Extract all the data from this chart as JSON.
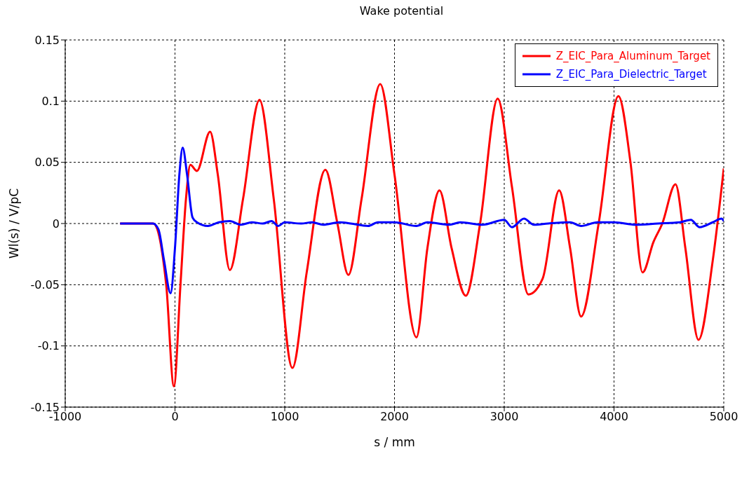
{
  "chart_data": {
    "type": "line",
    "title": "Wake potential",
    "xlabel": "s / mm",
    "ylabel": "Wl(s) / V/pC",
    "xlim": [
      -1000,
      5000
    ],
    "xticks": [
      -1000,
      0,
      1000,
      2000,
      3000,
      4000,
      5000
    ],
    "ylim": [
      -0.15,
      0.15
    ],
    "yticks": [
      -0.15,
      -0.1,
      -0.05,
      0,
      0.05,
      0.1,
      0.15
    ],
    "grid": true,
    "legend": "top right",
    "marker": "none",
    "line_style": "solid",
    "series": [
      {
        "name": "Z_EIC_Para_Aluminum_Target",
        "color": "#ff0000",
        "x": [
          -500,
          -200,
          -80,
          -10,
          50,
          100,
          140,
          200,
          320,
          390,
          500,
          620,
          770,
          900,
          1070,
          1200,
          1370,
          1480,
          1580,
          1700,
          1870,
          2000,
          2200,
          2300,
          2410,
          2520,
          2650,
          2780,
          2940,
          3070,
          3220,
          3350,
          3500,
          3600,
          3700,
          3860,
          4040,
          4150,
          4260,
          4360,
          4440,
          4560,
          4650,
          4770,
          4900,
          5000
        ],
        "values": [
          0,
          0,
          -0.05,
          -0.133,
          -0.05,
          0.02,
          0.048,
          0.043,
          0.075,
          0.04,
          -0.038,
          0.02,
          0.101,
          0.02,
          -0.118,
          -0.04,
          0.044,
          0,
          -0.042,
          0.02,
          0.114,
          0.04,
          -0.093,
          -0.02,
          0.027,
          -0.02,
          -0.059,
          0,
          0.102,
          0.03,
          -0.058,
          -0.045,
          0.027,
          -0.02,
          -0.076,
          0,
          0.104,
          0.05,
          -0.04,
          -0.015,
          0,
          0.032,
          -0.02,
          -0.095,
          -0.03,
          0.045
        ]
      },
      {
        "name": "Z_EIC_Para_Dielectric_Target",
        "color": "#0000ff",
        "x": [
          -500,
          -200,
          -150,
          -100,
          -40,
          0,
          40,
          70,
          110,
          160,
          200,
          300,
          400,
          500,
          600,
          700,
          800,
          880,
          940,
          1000,
          1150,
          1250,
          1350,
          1500,
          1600,
          1760,
          1850,
          2000,
          2200,
          2300,
          2500,
          2600,
          2800,
          3000,
          3070,
          3180,
          3270,
          3400,
          3600,
          3700,
          3850,
          4000,
          4200,
          4400,
          4600,
          4700,
          4780,
          4900,
          4980,
          5000
        ],
        "values": [
          0,
          0,
          -0.005,
          -0.03,
          -0.057,
          -0.02,
          0.04,
          0.062,
          0.04,
          0.005,
          0.001,
          -0.002,
          0.001,
          0.002,
          -0.001,
          0.001,
          0,
          0.002,
          -0.002,
          0.001,
          0,
          0.001,
          -0.001,
          0.001,
          0,
          -0.002,
          0.001,
          0.001,
          -0.002,
          0.001,
          -0.001,
          0.001,
          -0.001,
          0.003,
          -0.003,
          0.004,
          -0.001,
          0,
          0.001,
          -0.002,
          0.001,
          0.001,
          -0.001,
          0,
          0.001,
          0.003,
          -0.003,
          0.001,
          0.004,
          0.002
        ]
      }
    ]
  }
}
